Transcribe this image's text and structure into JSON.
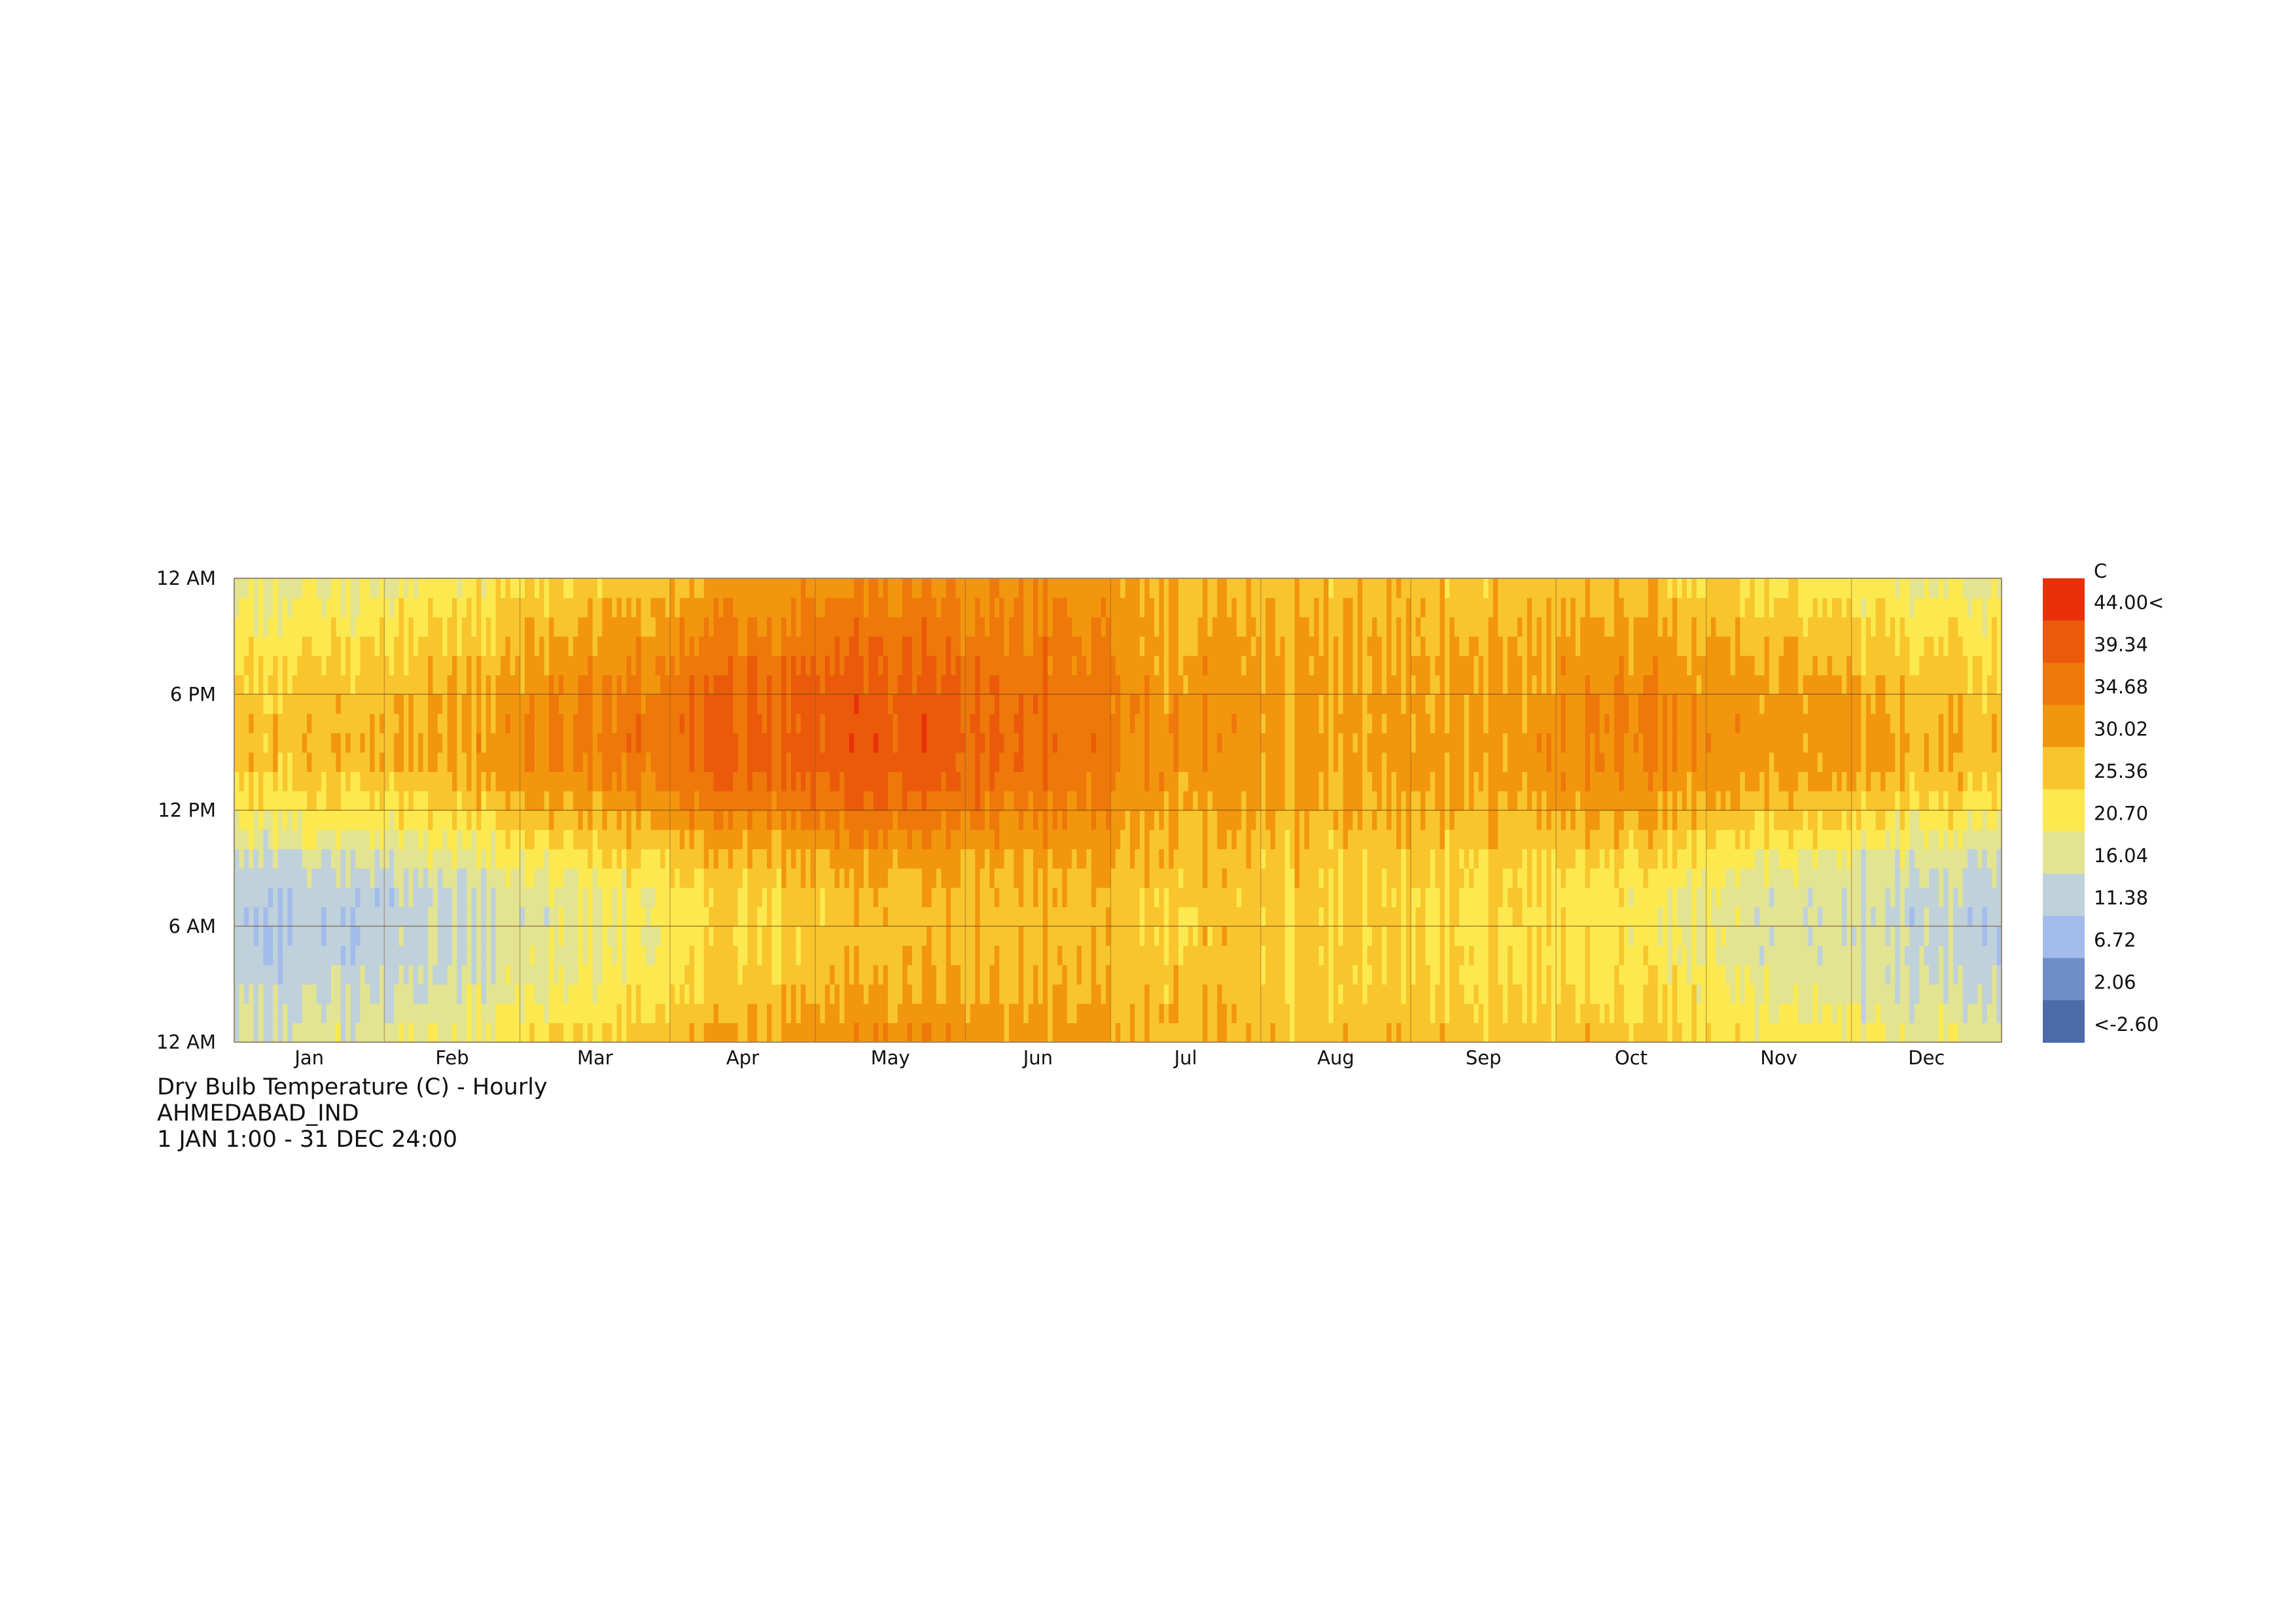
{
  "chart_data": {
    "type": "heatmap",
    "title": "Dry Bulb Temperature (C) - Hourly",
    "location": "AHMEDABAD_IND",
    "period": "1 JAN 1:00 - 31 DEC 24:00",
    "x_tick_labels": [
      "Jan",
      "Feb",
      "Mar",
      "Apr",
      "May",
      "Jun",
      "Jul",
      "Aug",
      "Sep",
      "Oct",
      "Nov",
      "Dec"
    ],
    "days_in_month": [
      31,
      28,
      31,
      30,
      31,
      30,
      31,
      31,
      30,
      31,
      30,
      31
    ],
    "y_tick_labels": [
      "12 AM",
      "6 PM",
      "12 PM",
      "6 AM",
      "12 AM"
    ],
    "y_range_hours": [
      0,
      24
    ],
    "monthly_min_temperature": [
      12,
      15,
      20,
      25,
      28,
      29,
      27,
      26,
      25,
      23,
      18,
      14
    ],
    "monthly_max_temperature": [
      28,
      31,
      36,
      40,
      42,
      39,
      33,
      31,
      32,
      35,
      33,
      29
    ],
    "peak_hour": 15,
    "trough_hour": 6,
    "grid": true,
    "legend": {
      "unit": "C",
      "position": "right",
      "values": [
        "44.00<",
        "39.34",
        "34.68",
        "30.02",
        "25.36",
        "20.70",
        "16.04",
        "11.38",
        "6.72",
        "2.06",
        "<-2.60"
      ],
      "colors": [
        "#e8310a",
        "#ea5a0a",
        "#ee780a",
        "#f2960e",
        "#f8c52c",
        "#fbe94f",
        "#e2e491",
        "#bfd1da",
        "#a3bcec",
        "#6f8ec8",
        "#4d6ba8"
      ]
    }
  }
}
